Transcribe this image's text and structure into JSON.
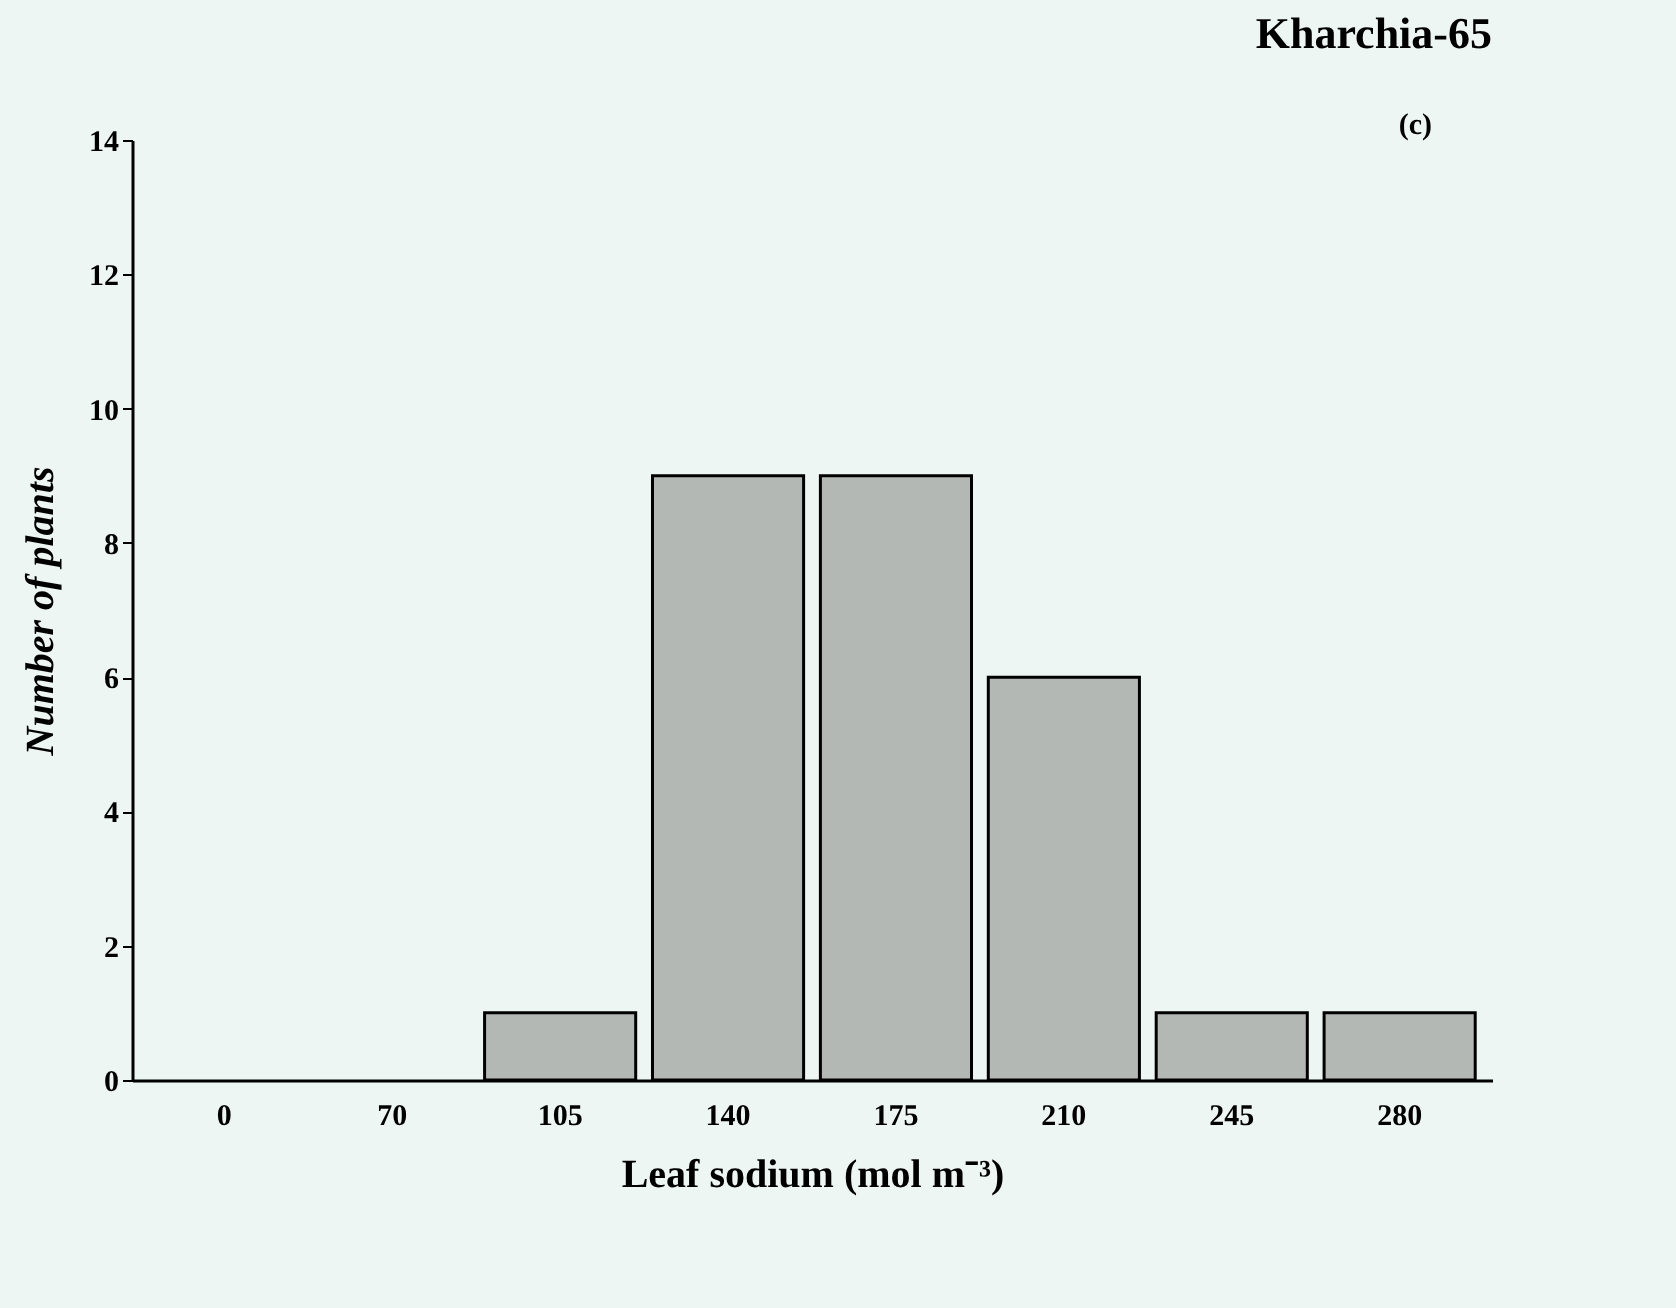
{
  "chart_data": {
    "type": "bar",
    "title": "Kharchia-65",
    "annotations": [
      "(c)"
    ],
    "xlabel": "Leaf sodium (mol m⁻³)",
    "ylabel": "Number of plants",
    "categories": [
      "0",
      "70",
      "105",
      "140",
      "175",
      "210",
      "245",
      "280"
    ],
    "values": [
      0,
      0,
      1,
      9,
      9,
      6,
      1,
      1
    ],
    "color": "#b4b8b4",
    "ylim": [
      0,
      14
    ],
    "yticks": [
      0,
      2,
      4,
      6,
      8,
      10,
      12,
      14
    ],
    "grid": false
  }
}
